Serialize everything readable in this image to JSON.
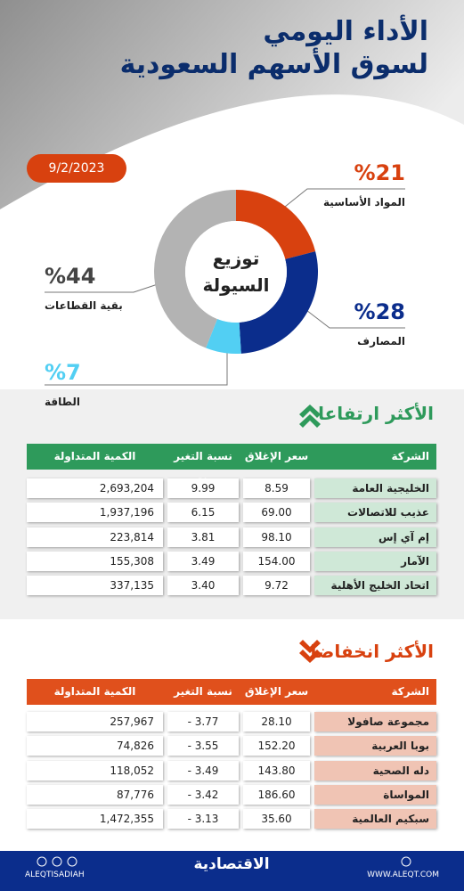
{
  "header": {
    "title_line1": "الأداء اليومي",
    "title_line2": "لسوق الأسهم السعودية",
    "date": "9/2/2023"
  },
  "chart_data": {
    "type": "pie",
    "title": "توزيع السيولة",
    "categories": [
      "المواد الأساسية",
      "المصارف",
      "الطاقة",
      "بقية القطاعات"
    ],
    "values": [
      21,
      28,
      7,
      44
    ],
    "value_labels": [
      "%21",
      "%28",
      "%7",
      "%44"
    ],
    "colors": [
      "#d8410f",
      "#0b2d8c",
      "#52cff3",
      "#b3b3b3"
    ]
  },
  "gainers": {
    "title": "الأكثر ارتفاعا",
    "columns": [
      "الشركة",
      "سعر الإغلاق",
      "نسبة التغير %",
      "الكمية المتداولة"
    ],
    "rows": [
      [
        "الخليجية العامة",
        "8.59",
        "9.99",
        "2,693,204"
      ],
      [
        "عذيب للاتصالات",
        "69.00",
        "6.15",
        "1,937,196"
      ],
      [
        "إم آي إس",
        "98.10",
        "3.81",
        "223,814"
      ],
      [
        "الآمار",
        "154.00",
        "3.49",
        "155,308"
      ],
      [
        "اتحاد الخليج الأهلية",
        "9.72",
        "3.40",
        "337,135"
      ]
    ]
  },
  "losers": {
    "title": "الأكثر انخفاضا",
    "columns": [
      "الشركة",
      "سعر الإغلاق",
      "نسبة التغير %",
      "الكمية المتداولة"
    ],
    "rows": [
      [
        "مجموعة صافولا",
        "28.10",
        "- 3.77",
        "257,967"
      ],
      [
        "بوبا العربية",
        "152.20",
        "- 3.55",
        "74,826"
      ],
      [
        "دله الصحية",
        "143.80",
        "- 3.49",
        "118,052"
      ],
      [
        "المواساة",
        "186.60",
        "- 3.42",
        "87,776"
      ],
      [
        "سبكيم العالمية",
        "35.60",
        "- 3.13",
        "1,472,355"
      ]
    ]
  },
  "footer": {
    "handle": "ALEQTISADIAH",
    "logo": "الاقتصادية",
    "website": "WWW.ALEQT.COM"
  }
}
